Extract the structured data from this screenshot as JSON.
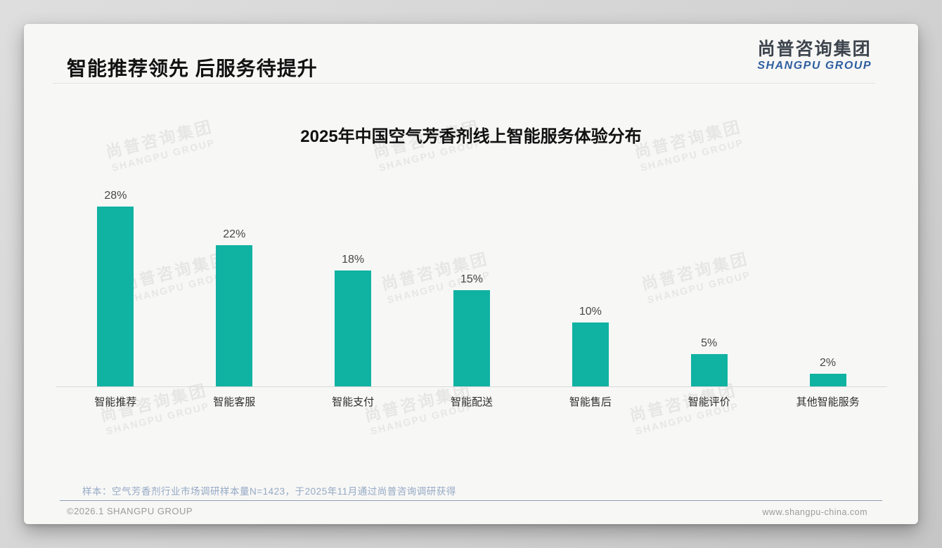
{
  "page": {
    "title": "智能推荐领先 后服务待提升",
    "logo": {
      "cn": "尚普咨询集团",
      "en": "SHANGPU GROUP"
    },
    "watermark": {
      "line1": "尚普咨询集团",
      "line2": "SHANGPU GROUP"
    },
    "sample_note": "样本：空气芳香剂行业市场调研样本量N=1423，于2025年11月通过尚普咨询调研获得",
    "footer": {
      "copyright": "©2026.1 SHANGPU GROUP",
      "website": "www.shangpu-china.com"
    }
  },
  "chart_data": {
    "type": "bar",
    "title": "2025年中国空气芳香剂线上智能服务体验分布",
    "categories": [
      "智能推荐",
      "智能客服",
      "智能支付",
      "智能配送",
      "智能售后",
      "智能评价",
      "其他智能服务"
    ],
    "values": [
      28,
      22,
      18,
      15,
      10,
      5,
      2
    ],
    "value_suffix": "%",
    "bar_color": "#10b2a2",
    "ylim": [
      0,
      30
    ],
    "grid": false,
    "legend": "none"
  }
}
